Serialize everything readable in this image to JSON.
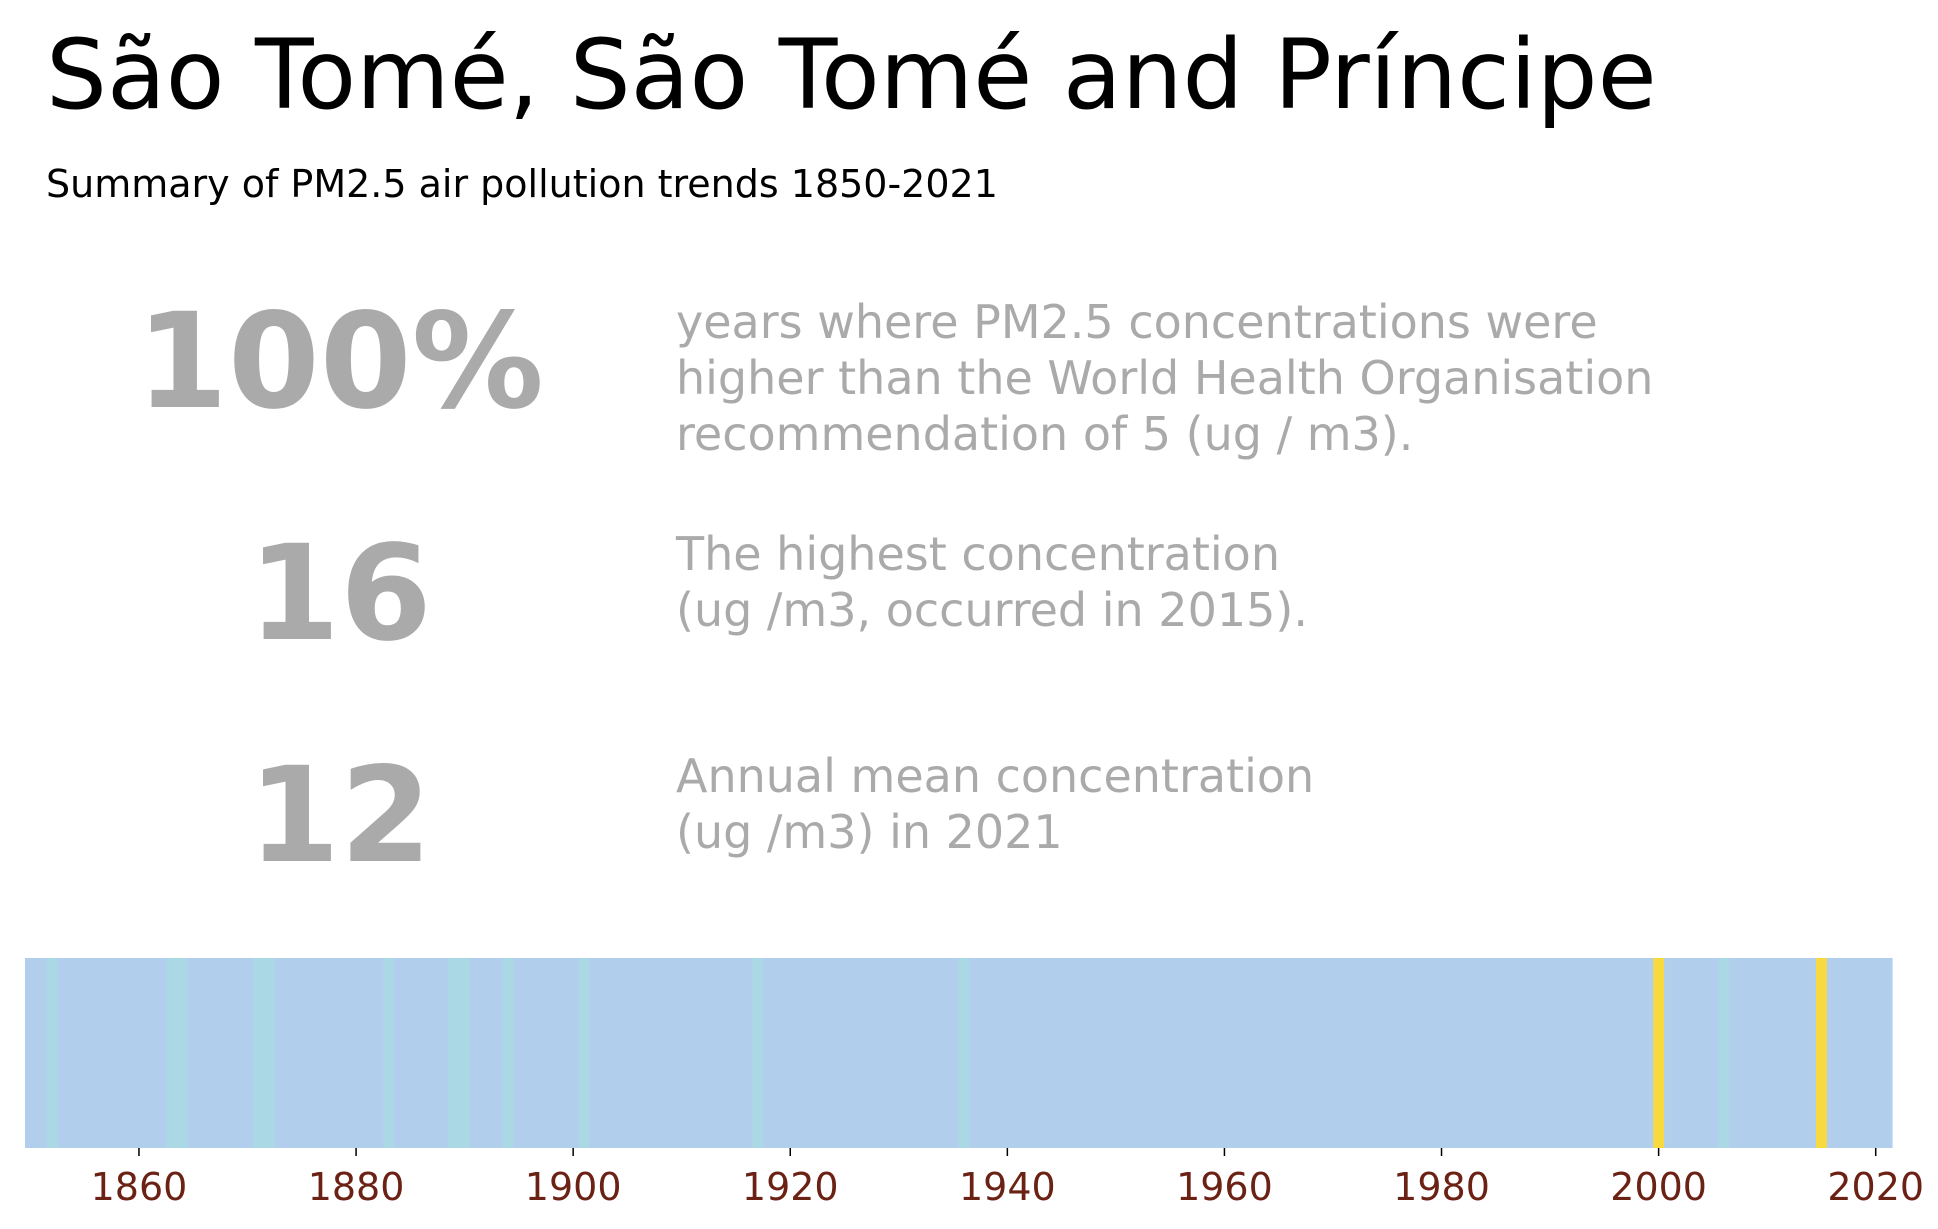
{
  "title": "São Tomé, São Tomé and Príncipe",
  "subtitle": "Summary of PM2.5 air pollution trends 1850-2021",
  "stats": [
    {
      "value": "100%",
      "lines": [
        "years where PM2.5 concentrations were",
        "higher than the World Health Organisation",
        "recommendation of 5 (ug / m3)."
      ]
    },
    {
      "value": "16",
      "lines": [
        "The highest concentration",
        "(ug /m3, occurred in 2015)."
      ]
    },
    {
      "value": "12",
      "lines": [
        "Annual mean concentration",
        "(ug /m3) in 2021"
      ]
    }
  ],
  "colors": {
    "base": "#b1cfec",
    "light": "#aad8e5",
    "highlight": "#f8d93f",
    "tick": "#6b2214",
    "stat": "#aaaaaa"
  },
  "chart_data": {
    "type": "heatmap",
    "x_range": [
      1850,
      2021
    ],
    "xticks": [
      1860,
      1880,
      1900,
      1920,
      1940,
      1960,
      1980,
      2000,
      2020
    ],
    "light_years": [
      1852,
      1863,
      1864,
      1871,
      1872,
      1883,
      1889,
      1890,
      1894,
      1901,
      1917,
      1936,
      2006
    ],
    "highlight_years": [
      2000,
      2015
    ]
  }
}
